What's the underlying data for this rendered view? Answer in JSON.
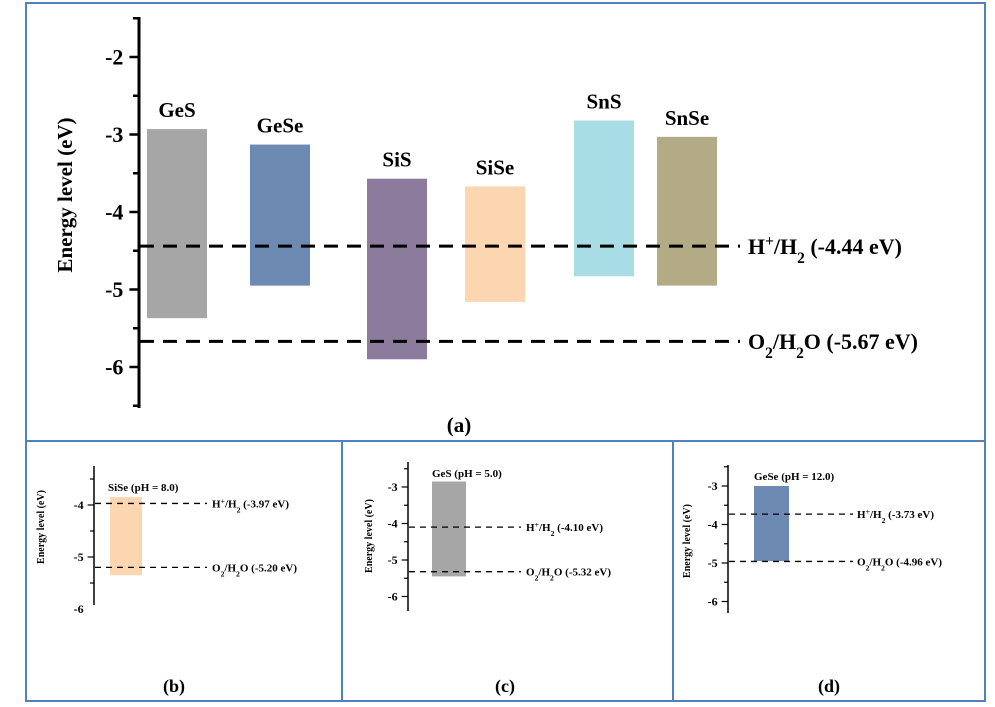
{
  "chart_data": [
    {
      "type": "bar",
      "panel_label": "(a)",
      "ylabel": "Energy level (eV)",
      "ylim": [
        -6.5,
        -1.5
      ],
      "yticks": [
        -2,
        -3,
        -4,
        -5,
        -6
      ],
      "yticks_display": [
        "-2",
        "-3",
        "-4",
        "-5",
        "-6"
      ],
      "bars": [
        {
          "label": "GeS",
          "top": -2.93,
          "bottom": -5.37,
          "color": "#a6a6a6"
        },
        {
          "label": "GeSe",
          "top": -3.13,
          "bottom": -4.95,
          "color": "#6d8ab2"
        },
        {
          "label": "SiS",
          "top": -3.57,
          "bottom": -5.9,
          "color": "#8c7b9c"
        },
        {
          "label": "SiSe",
          "top": -3.67,
          "bottom": -5.16,
          "color": "#fcd5b1"
        },
        {
          "label": "SnS",
          "top": -2.82,
          "bottom": -4.83,
          "color": "#a9dde6"
        },
        {
          "label": "SnSe",
          "top": -3.03,
          "bottom": -4.95,
          "color": "#b3aa86"
        }
      ],
      "reference_lines": [
        {
          "name": "H⁺/H₂",
          "value": -4.44,
          "text": "(-4.44 eV)"
        },
        {
          "name": "O₂/H₂O",
          "value": -5.67,
          "text": "(-5.67 eV)"
        }
      ]
    },
    {
      "type": "bar",
      "panel_label": "(b)",
      "ylabel": "Energy level (eV)",
      "ylim": [
        -6.6,
        -3.1
      ],
      "yticks_display": [
        "-4",
        "-5",
        "-6"
      ],
      "yticks": [
        -4,
        -5,
        -6
      ],
      "bars": [
        {
          "label": "SiSe (pH = 8.0)",
          "top": -3.85,
          "bottom": -5.35,
          "color": "#fcd5b1"
        }
      ],
      "reference_lines": [
        {
          "name": "H⁺/H₂",
          "value": -3.97,
          "text": "(-3.97 eV)"
        },
        {
          "name": "O₂/H₂O",
          "value": -5.2,
          "text": "(-5.20 eV)"
        }
      ]
    },
    {
      "type": "bar",
      "panel_label": "(c)",
      "ylabel": "Energy level (eV)",
      "ylim": [
        -6.3,
        -2.3
      ],
      "yticks_display": [
        "-3",
        "-4",
        "-5",
        "-6"
      ],
      "yticks": [
        -3,
        -4,
        -5,
        -6
      ],
      "bars": [
        {
          "label": "GeS (pH = 5.0)",
          "top": -2.85,
          "bottom": -5.45,
          "color": "#a6a6a6"
        }
      ],
      "reference_lines": [
        {
          "name": "H⁺/H₂",
          "value": -4.1,
          "text": "(-4.10 eV)"
        },
        {
          "name": "O₂/H₂O",
          "value": -5.32,
          "text": "(-5.32 eV)"
        }
      ]
    },
    {
      "type": "bar",
      "panel_label": "(d)",
      "ylabel": "Energy level (eV)",
      "ylim": [
        -6.3,
        -2.5
      ],
      "yticks_display": [
        "-3",
        "-4",
        "-5",
        "-6"
      ],
      "yticks": [
        -3,
        -4,
        -5,
        -6
      ],
      "bars": [
        {
          "label": "GeSe (pH = 12.0)",
          "top": -3.0,
          "bottom": -4.95,
          "color": "#6d8ab2"
        }
      ],
      "reference_lines": [
        {
          "name": "H⁺/H₂",
          "value": -3.73,
          "text": "(-3.73 eV)"
        },
        {
          "name": "O₂/H₂O",
          "value": -4.96,
          "text": "(-4.96 eV)"
        }
      ]
    }
  ],
  "colors": {
    "frame": "#4f81bd",
    "axis": "#000000"
  }
}
